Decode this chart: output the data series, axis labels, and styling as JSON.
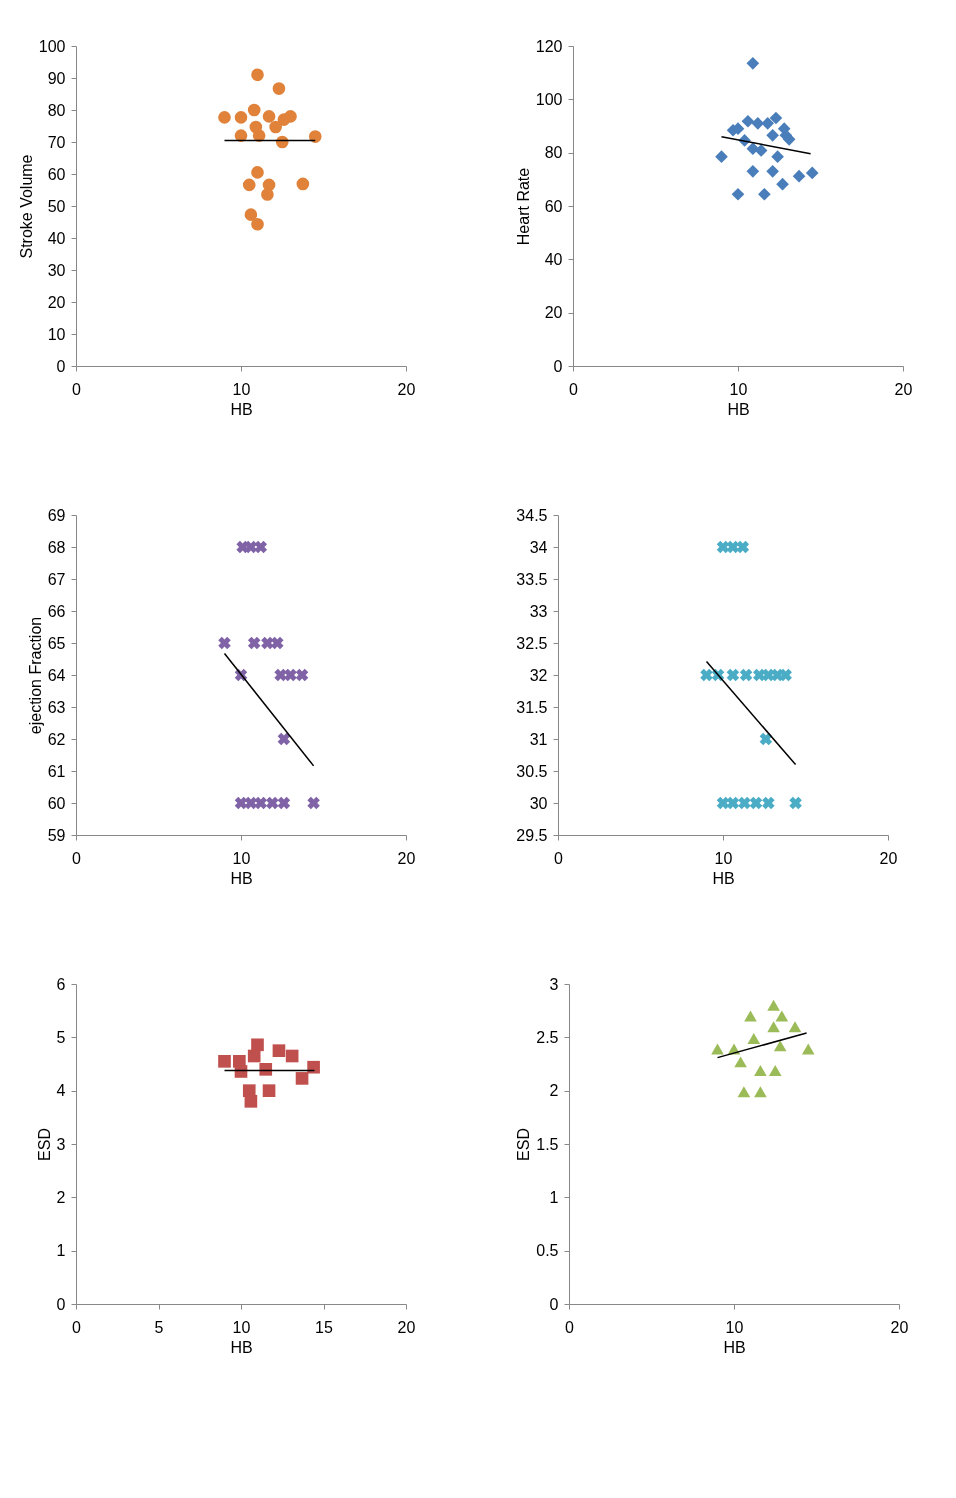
{
  "chart_data": [
    {
      "type": "scatter",
      "xlabel": "HB",
      "ylabel": "Stroke Volume",
      "xlim": [
        0,
        20
      ],
      "xticks": [
        0,
        10,
        20
      ],
      "ylim": [
        0,
        100
      ],
      "yticks": [
        0,
        10,
        20,
        30,
        40,
        50,
        60,
        70,
        80,
        90,
        100
      ],
      "grid": false,
      "series": [
        {
          "marker": "circle",
          "color": "#e0823a",
          "x": [
            11.0,
            12.3,
            9.0,
            10.8,
            10.0,
            11.7,
            13.0,
            12.6,
            14.5,
            10.0,
            11.1,
            12.5,
            12.1,
            10.9,
            11.0,
            10.5,
            11.7,
            11.6,
            13.75,
            10.6,
            11.0
          ],
          "values": [
            91,
            86.7,
            77.7,
            80,
            77.7,
            78,
            78,
            77,
            71.7,
            72,
            72,
            70,
            74.7,
            74.7,
            60.5,
            56.6,
            56.6,
            53.6,
            56.9,
            47.3,
            44.3
          ]
        },
        {
          "type": "line",
          "color": "#000000",
          "x": [
            9.0,
            14.5
          ],
          "values": [
            70.5,
            70.5
          ]
        }
      ]
    },
    {
      "type": "scatter",
      "xlabel": "HB",
      "ylabel": "Heart Rate",
      "xlim": [
        0,
        20
      ],
      "xticks": [
        0,
        10,
        20
      ],
      "ylim": [
        0,
        120
      ],
      "yticks": [
        0,
        20,
        40,
        60,
        80,
        100,
        120
      ],
      "grid": false,
      "series": [
        {
          "marker": "diamond",
          "color": "#4a7ebb",
          "x": [
            10.9,
            9.0,
            10.0,
            11.6,
            10.9,
            12.1,
            12.7,
            13.7,
            14.5,
            12.4,
            10.0,
            10.6,
            11.2,
            11.8,
            12.3,
            12.8,
            13.1,
            10.4,
            10.9,
            11.4,
            9.7,
            12.9,
            12.1
          ],
          "values": [
            113.5,
            78.5,
            64.4,
            64.4,
            73,
            73,
            68.2,
            71.2,
            72.4,
            78.5,
            89,
            91.8,
            91,
            91,
            93,
            89,
            85,
            84.6,
            81.5,
            80.8,
            88.4,
            86.5,
            86.5
          ]
        },
        {
          "type": "line",
          "color": "#000000",
          "x": [
            9.0,
            14.4
          ],
          "values": [
            86,
            79.6
          ]
        }
      ]
    },
    {
      "type": "scatter",
      "xlabel": "HB",
      "ylabel": "ejection Fraction",
      "xlim": [
        0,
        20
      ],
      "xticks": [
        0,
        10,
        20
      ],
      "ylim": [
        59,
        69
      ],
      "yticks": [
        59,
        60,
        61,
        62,
        63,
        64,
        65,
        66,
        67,
        68,
        69
      ],
      "grid": false,
      "series": [
        {
          "marker": "cross",
          "color": "#7f63a6",
          "x": [
            10.1,
            10.6,
            11.2,
            9.0,
            10.8,
            11.6,
            12.2,
            10.0,
            12.4,
            13.0,
            13.7,
            12.6,
            10.0,
            10.6,
            11.2,
            11.9,
            12.6,
            14.4
          ],
          "values": [
            68,
            68,
            68,
            65,
            65,
            65,
            65,
            64,
            64,
            64,
            64,
            62,
            60,
            60,
            60,
            60,
            60,
            60
          ]
        },
        {
          "type": "line",
          "color": "#000000",
          "x": [
            9.0,
            14.4
          ],
          "values": [
            64.67,
            61.16
          ]
        }
      ]
    },
    {
      "type": "scatter",
      "xlabel": "HB",
      "xlim": [
        0,
        20
      ],
      "xticks": [
        0,
        10,
        20
      ],
      "ylim": [
        29.5,
        34.5
      ],
      "yticks": [
        29.5,
        30,
        30.5,
        31,
        31.5,
        32,
        32.5,
        33,
        33.5,
        34,
        34.5
      ],
      "grid": false,
      "series": [
        {
          "marker": "cross",
          "color": "#4bacc6",
          "x": [
            10.0,
            10.6,
            11.2,
            9.0,
            9.7,
            10.6,
            11.4,
            12.2,
            12.75,
            13.3,
            13.8,
            12.6,
            10.0,
            10.6,
            11.3,
            12.0,
            12.75,
            14.4
          ],
          "values": [
            34,
            34,
            34,
            32,
            32,
            32,
            32,
            32,
            32,
            32,
            32,
            31,
            30,
            30,
            30,
            30,
            30,
            30
          ]
        },
        {
          "type": "line",
          "color": "#000000",
          "x": [
            9.0,
            14.4
          ],
          "values": [
            32.21,
            30.6
          ]
        }
      ]
    },
    {
      "type": "scatter",
      "xlabel": "HB",
      "ylabel": "ESD",
      "xlim": [
        0,
        20
      ],
      "xticks": [
        0,
        5,
        10,
        15,
        20
      ],
      "ylim": [
        0,
        6
      ],
      "yticks": [
        0,
        1,
        2,
        3,
        4,
        5,
        6
      ],
      "grid": false,
      "series": [
        {
          "marker": "square",
          "color": "#c0504d",
          "x": [
            9.0,
            9.9,
            11.0,
            12.3,
            13.1,
            14.4,
            13.7,
            10.6,
            10.5,
            11.7,
            10.8,
            11.5,
            10.0
          ],
          "values": [
            4.55,
            4.55,
            4.86,
            4.75,
            4.65,
            4.44,
            4.23,
            3.8,
            4.0,
            4.0,
            4.65,
            4.4,
            4.36
          ]
        },
        {
          "type": "line",
          "color": "#000000",
          "x": [
            9.0,
            14.45
          ],
          "values": [
            4.38,
            4.38
          ]
        }
      ]
    },
    {
      "type": "scatter",
      "xlabel": "HB",
      "ylabel": "ESD",
      "xlim": [
        0,
        20
      ],
      "xticks": [
        0,
        10,
        20
      ],
      "ylim": [
        0,
        3
      ],
      "yticks": [
        0,
        0.5,
        1,
        1.5,
        2,
        2.5,
        3
      ],
      "grid": false,
      "series": [
        {
          "marker": "triangle",
          "color": "#9bbb59",
          "x": [
            9.0,
            10.0,
            11.0,
            12.4,
            12.9,
            13.7,
            14.5,
            10.4,
            11.6,
            12.5,
            10.6,
            11.6,
            12.4,
            11.2,
            12.8
          ],
          "values": [
            2.39,
            2.39,
            2.7,
            2.8,
            2.7,
            2.6,
            2.39,
            2.27,
            2.19,
            2.19,
            1.99,
            1.99,
            2.6,
            2.49,
            2.42
          ]
        },
        {
          "type": "line",
          "color": "#000000",
          "x": [
            9.0,
            14.4
          ],
          "values": [
            2.31,
            2.54
          ]
        }
      ]
    }
  ]
}
